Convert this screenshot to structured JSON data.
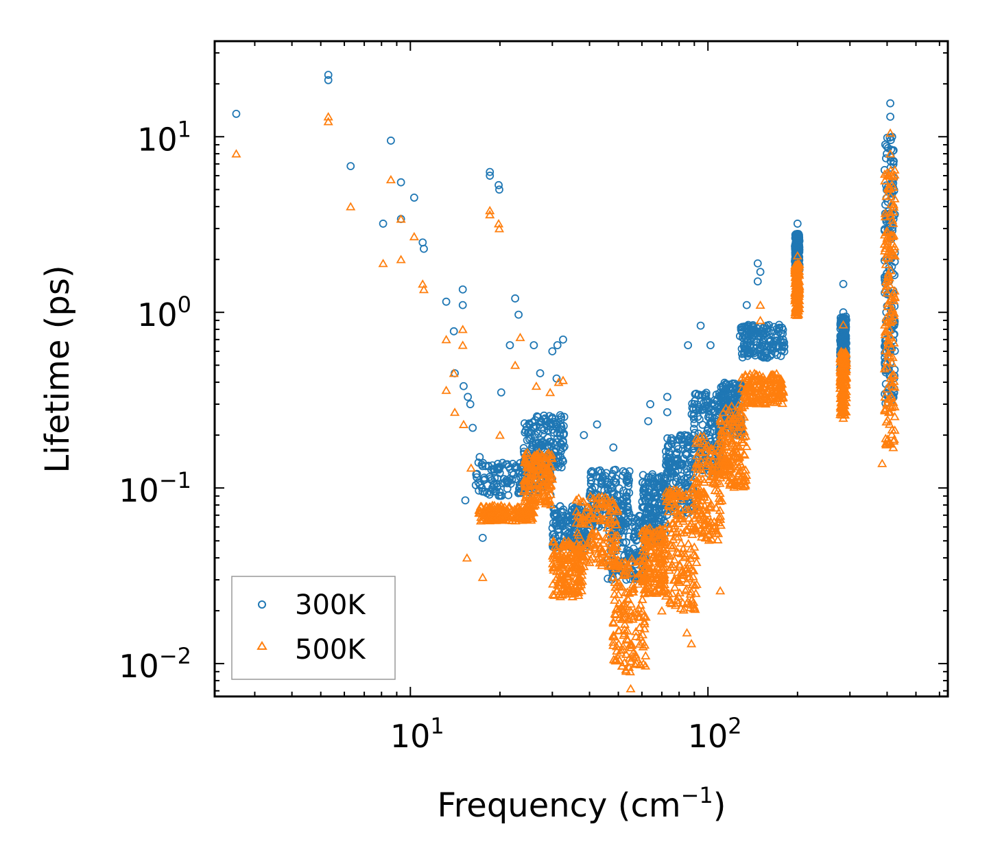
{
  "chart_data": {
    "type": "scatter",
    "title": "",
    "xlabel": "Frequency (cm",
    "xlabel_sup": "−1",
    "xlabel_suffix": ")",
    "ylabel": "Lifetime (ps)",
    "xscale": "log",
    "yscale": "log",
    "xlim": [
      2.2,
      640
    ],
    "ylim": [
      0.0065,
      35
    ],
    "x_ticks": [
      {
        "value": 10,
        "base": "10",
        "exp": "1"
      },
      {
        "value": 100,
        "base": "10",
        "exp": "2"
      }
    ],
    "y_ticks": [
      {
        "value": 10,
        "base": "10",
        "exp": "1"
      },
      {
        "value": 1,
        "base": "10",
        "exp": "0"
      },
      {
        "value": 0.1,
        "base": "10",
        "exp": "−1"
      },
      {
        "value": 0.01,
        "base": "10",
        "exp": "−2"
      }
    ],
    "legend": {
      "position": "lower-left"
    },
    "colors": {
      "300K": "#1f77b4",
      "500K": "#ff7f0e"
    },
    "series": [
      {
        "name": "300K",
        "marker": "circle",
        "color": "#1f77b4",
        "points": [
          [
            2.6,
            13.5
          ],
          [
            5.3,
            22.5
          ],
          [
            5.3,
            21.0
          ],
          [
            6.3,
            6.8
          ],
          [
            8.1,
            3.2
          ],
          [
            8.6,
            9.5
          ],
          [
            9.3,
            5.5
          ],
          [
            9.3,
            3.4
          ],
          [
            10.3,
            4.5
          ],
          [
            11.0,
            2.5
          ],
          [
            11.1,
            2.3
          ],
          [
            13.2,
            1.15
          ],
          [
            14.0,
            0.78
          ],
          [
            15.0,
            1.35
          ],
          [
            15.0,
            1.1
          ],
          [
            14.1,
            0.45
          ],
          [
            15.1,
            0.38
          ],
          [
            15.6,
            0.33
          ],
          [
            16.2,
            0.22
          ],
          [
            15.9,
            0.3
          ],
          [
            17.1,
            0.15
          ],
          [
            18.5,
            6.3
          ],
          [
            18.5,
            6.0
          ],
          [
            19.8,
            5.3
          ],
          [
            19.9,
            5.0
          ],
          [
            21.6,
            0.65
          ],
          [
            22.5,
            1.2
          ],
          [
            23.1,
            0.97
          ],
          [
            26.0,
            0.65
          ],
          [
            27.3,
            0.45
          ],
          [
            30.0,
            0.6
          ],
          [
            31.2,
            0.65
          ],
          [
            32.6,
            0.7
          ],
          [
            31.0,
            0.42
          ],
          [
            20.2,
            0.35
          ],
          [
            15.3,
            0.085
          ],
          [
            17.5,
            0.052
          ],
          [
            42.4,
            0.23
          ],
          [
            38.3,
            0.2
          ],
          [
            48.1,
            0.17
          ],
          [
            64.0,
            0.3
          ],
          [
            63.0,
            0.24
          ],
          [
            73.0,
            0.33
          ],
          [
            73.0,
            0.27
          ],
          [
            94.5,
            0.84
          ],
          [
            85.7,
            0.65
          ],
          [
            102.0,
            0.65
          ],
          [
            135.0,
            1.1
          ],
          [
            147.0,
            1.9
          ],
          [
            150.0,
            1.7
          ],
          [
            147.0,
            1.5
          ],
          [
            200.0,
            3.2
          ],
          [
            200.0,
            2.6
          ],
          [
            285.0,
            1.45
          ],
          [
            285.0,
            1.0
          ],
          [
            410.0,
            15.5
          ],
          [
            410.0,
            13.0
          ]
        ],
        "clusters": [
          {
            "x": [
              16.5,
              30
            ],
            "y": [
              0.09,
              0.14
            ]
          },
          {
            "x": [
              24,
              33
            ],
            "y": [
              0.13,
              0.26
            ]
          },
          {
            "x": [
              30,
              40
            ],
            "y": [
              0.045,
              0.08
            ]
          },
          {
            "x": [
              40,
              55
            ],
            "y": [
              0.06,
              0.13
            ]
          },
          {
            "x": [
              46,
              62
            ],
            "y": [
              0.03,
              0.07
            ]
          },
          {
            "x": [
              60,
              72
            ],
            "y": [
              0.05,
              0.12
            ]
          },
          {
            "x": [
              72,
              90
            ],
            "y": [
              0.07,
              0.2
            ]
          },
          {
            "x": [
              88,
              110
            ],
            "y": [
              0.12,
              0.35
            ]
          },
          {
            "x": [
              110,
              130
            ],
            "y": [
              0.2,
              0.4
            ]
          },
          {
            "x": [
              128,
              182
            ],
            "y": [
              0.55,
              0.85
            ]
          },
          {
            "x": [
              196,
              203
            ],
            "y": [
              1.7,
              2.8
            ]
          },
          {
            "x": [
              278,
              292
            ],
            "y": [
              0.45,
              0.95
            ]
          },
          {
            "x": [
              392,
              425
            ],
            "y": [
              0.3,
              10.0
            ]
          }
        ]
      },
      {
        "name": "500K",
        "marker": "triangle",
        "color": "#ff7f0e",
        "points": [
          [
            2.6,
            8.0
          ],
          [
            5.3,
            13.0
          ],
          [
            5.3,
            12.2
          ],
          [
            6.3,
            4.0
          ],
          [
            8.1,
            1.9
          ],
          [
            8.6,
            5.7
          ],
          [
            9.3,
            2.0
          ],
          [
            9.3,
            3.4
          ],
          [
            10.3,
            2.7
          ],
          [
            11.0,
            1.45
          ],
          [
            11.1,
            1.35
          ],
          [
            13.2,
            0.7
          ],
          [
            14.0,
            0.45
          ],
          [
            15.0,
            0.8
          ],
          [
            15.0,
            0.65
          ],
          [
            14.1,
            0.27
          ],
          [
            15.1,
            0.23
          ],
          [
            16.0,
            0.13
          ],
          [
            13.2,
            0.36
          ],
          [
            17.5,
            0.031
          ],
          [
            15.5,
            0.04
          ],
          [
            18.5,
            3.8
          ],
          [
            18.5,
            3.6
          ],
          [
            19.8,
            3.2
          ],
          [
            19.9,
            3.0
          ],
          [
            23.4,
            0.72
          ],
          [
            22.5,
            0.5
          ],
          [
            26.5,
            0.38
          ],
          [
            29.5,
            0.35
          ],
          [
            31.5,
            0.4
          ],
          [
            32.6,
            0.41
          ],
          [
            20.0,
            0.2
          ],
          [
            35.0,
            0.025
          ],
          [
            55.0,
            0.0072
          ],
          [
            54.8,
            0.009
          ],
          [
            70.0,
            0.02
          ],
          [
            85.0,
            0.015
          ],
          [
            88.0,
            0.013
          ],
          [
            110.0,
            0.026
          ],
          [
            150.0,
            1.1
          ],
          [
            150.0,
            0.9
          ],
          [
            200.0,
            2.1
          ],
          [
            285.0,
            0.85
          ],
          [
            285.0,
            0.25
          ],
          [
            385.0,
            0.138
          ],
          [
            410.0,
            10.5
          ],
          [
            410.0,
            8.0
          ]
        ],
        "clusters": [
          {
            "x": [
              17,
              26
            ],
            "y": [
              0.065,
              0.08
            ]
          },
          {
            "x": [
              24,
              30
            ],
            "y": [
              0.08,
              0.16
            ]
          },
          {
            "x": [
              30,
              38
            ],
            "y": [
              0.024,
              0.05
            ]
          },
          {
            "x": [
              36,
              50
            ],
            "y": [
              0.035,
              0.09
            ]
          },
          {
            "x": [
              48,
              62
            ],
            "y": [
              0.009,
              0.04
            ]
          },
          {
            "x": [
              60,
              72
            ],
            "y": [
              0.025,
              0.06
            ]
          },
          {
            "x": [
              72,
              92
            ],
            "y": [
              0.02,
              0.1
            ]
          },
          {
            "x": [
              90,
              112
            ],
            "y": [
              0.05,
              0.2
            ]
          },
          {
            "x": [
              110,
              135
            ],
            "y": [
              0.1,
              0.3
            ]
          },
          {
            "x": [
              130,
              180
            ],
            "y": [
              0.3,
              0.45
            ]
          },
          {
            "x": [
              196,
              203
            ],
            "y": [
              0.95,
              1.9
            ]
          },
          {
            "x": [
              278,
              292
            ],
            "y": [
              0.26,
              0.6
            ]
          },
          {
            "x": [
              392,
              425
            ],
            "y": [
              0.17,
              6.5
            ]
          }
        ]
      }
    ]
  }
}
